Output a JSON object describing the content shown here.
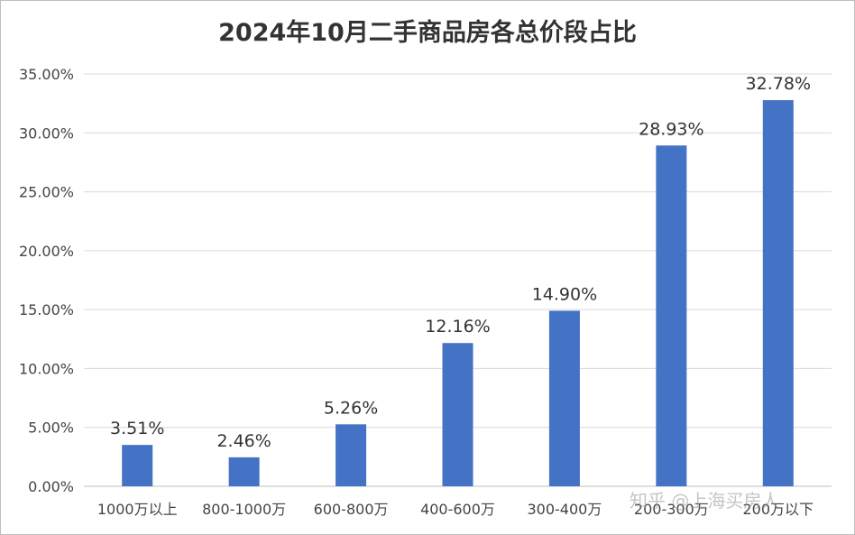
{
  "chart_data": {
    "type": "bar",
    "title": "2024年10月二手商品房各总价段占比",
    "categories": [
      "1000万以上",
      "800-1000万",
      "600-800万",
      "400-600万",
      "300-400万",
      "200-300万",
      "200万以下"
    ],
    "series": [
      {
        "values": [
          3.51,
          2.46,
          5.26,
          12.16,
          14.9,
          28.93,
          32.78
        ]
      }
    ],
    "data_labels": [
      "3.51%",
      "2.46%",
      "5.26%",
      "12.16%",
      "14.90%",
      "28.93%",
      "32.78%"
    ],
    "y_ticks": [
      "0.00%",
      "5.00%",
      "10.00%",
      "15.00%",
      "20.00%",
      "25.00%",
      "30.00%",
      "35.00%"
    ],
    "ylim": [
      0,
      35
    ],
    "y_unit": "%",
    "grid": true,
    "bar_color": "#4472C4",
    "xlabel": "",
    "ylabel": ""
  },
  "watermark": "知乎 @上海买房人"
}
